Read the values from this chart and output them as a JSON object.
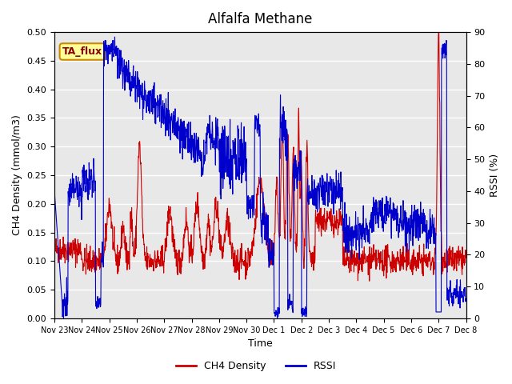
{
  "title": "Alfalfa Methane",
  "ylabel_left": "CH4 Density (mmol/m3)",
  "ylabel_right": "RSSI (%)",
  "xlabel": "Time",
  "annotation": "TA_flux",
  "ylim_left": [
    0.0,
    0.5
  ],
  "ylim_right": [
    0,
    90
  ],
  "yticks_left": [
    0.0,
    0.05,
    0.1,
    0.15,
    0.2,
    0.25,
    0.3,
    0.35,
    0.4,
    0.45,
    0.5
  ],
  "yticks_right": [
    0,
    10,
    20,
    30,
    40,
    50,
    60,
    70,
    80,
    90
  ],
  "xtick_labels": [
    "Nov 23",
    "Nov 24",
    "Nov 25",
    "Nov 26",
    "Nov 27",
    "Nov 28",
    "Nov 29",
    "Nov 30",
    "Dec 1",
    "Dec 2",
    "Dec 3",
    "Dec 4",
    "Dec 5",
    "Dec 6",
    "Dec 7",
    "Dec 8"
  ],
  "color_ch4": "#cc0000",
  "color_rssi": "#0000cc",
  "bg_color": "#e8e8e8",
  "legend_ch4": "CH4 Density",
  "legend_rssi": "RSSI",
  "annotation_bg": "#ffff99",
  "annotation_border": "#cc8800"
}
